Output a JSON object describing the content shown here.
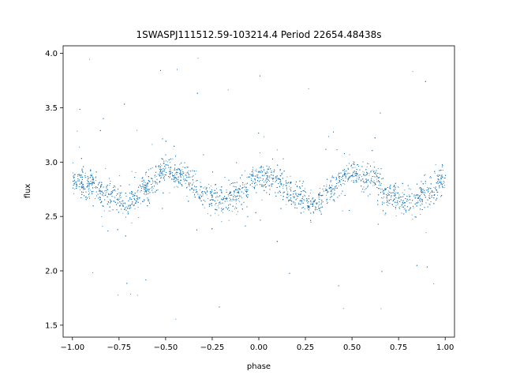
{
  "chart_data": {
    "type": "scatter",
    "title": "1SWASPJ111512.59-103214.4 Period 22654.48438s",
    "xlabel": "phase",
    "ylabel": "flux",
    "xlim": [
      -1.05,
      1.05
    ],
    "ylim": [
      1.39,
      4.07
    ],
    "xticks": [
      -1.0,
      -0.75,
      -0.5,
      -0.25,
      0.0,
      0.25,
      0.5,
      0.75,
      1.0
    ],
    "xtick_labels": [
      "−1.00",
      "−0.75",
      "−0.50",
      "−0.25",
      "0.00",
      "0.25",
      "0.50",
      "0.75",
      "1.00"
    ],
    "yticks": [
      1.5,
      2.0,
      2.5,
      3.0,
      3.5,
      4.0
    ],
    "ytick_labels": [
      "1.5",
      "2.0",
      "2.5",
      "3.0",
      "3.5",
      "4.0"
    ],
    "grid": false,
    "legend": "none",
    "point_color": "#1f77b4",
    "series": [
      {
        "trend": {
          "x": [
            -1.0,
            -0.9,
            -0.8,
            -0.7,
            -0.6,
            -0.5,
            -0.4,
            -0.3,
            -0.2,
            -0.1,
            0.0,
            0.1,
            0.2,
            0.3,
            0.4,
            0.5,
            0.6,
            0.7,
            0.8,
            0.9,
            1.0
          ],
          "y": [
            2.84,
            2.8,
            2.69,
            2.62,
            2.77,
            2.93,
            2.86,
            2.71,
            2.64,
            2.73,
            2.87,
            2.83,
            2.68,
            2.62,
            2.76,
            2.92,
            2.86,
            2.71,
            2.64,
            2.71,
            2.84
          ]
        },
        "core_scatter": 0.09,
        "outlier_range": [
          1.5,
          4.0
        ]
      }
    ]
  }
}
